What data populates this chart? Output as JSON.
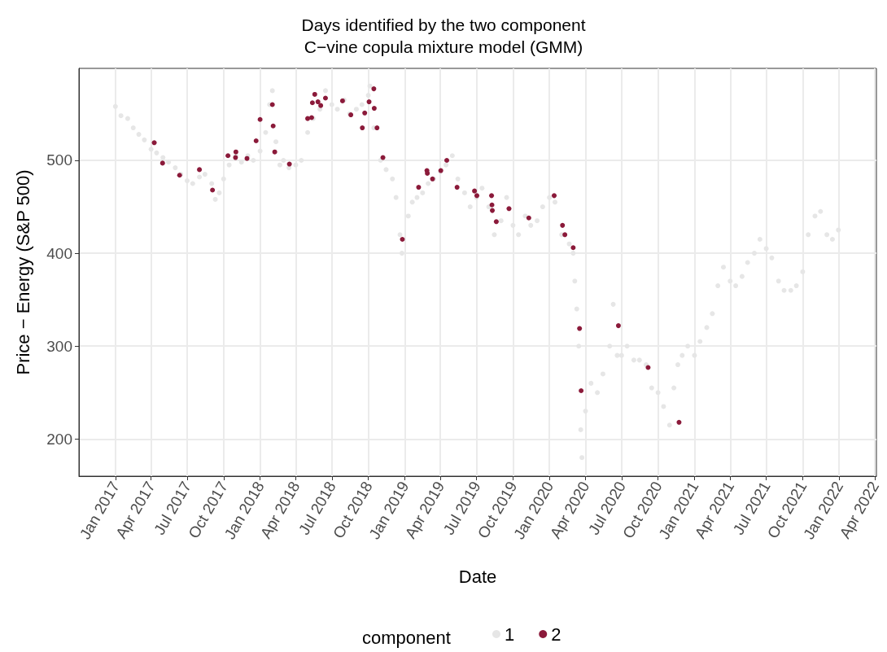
{
  "chart_data": {
    "type": "scatter",
    "title": "Days identified by the two component\nC−vine copula mixture model (GMM)",
    "xlabel": "Date",
    "ylabel": "Price − Energy (S&P 500)",
    "legend_title": "component",
    "legend": "bottom",
    "grid": true,
    "marker": "circle",
    "xlim": [
      "2016-10-01",
      "2022-04-05"
    ],
    "ylim": [
      160,
      599
    ],
    "yticks": [
      200,
      300,
      400,
      500
    ],
    "xticks": [
      {
        "value": "2017-01-01",
        "label": "Jan 2017"
      },
      {
        "value": "2017-04-01",
        "label": "Apr 2017"
      },
      {
        "value": "2017-07-01",
        "label": "Jul 2017"
      },
      {
        "value": "2017-10-01",
        "label": "Oct 2017"
      },
      {
        "value": "2018-01-01",
        "label": "Jan 2018"
      },
      {
        "value": "2018-04-01",
        "label": "Apr 2018"
      },
      {
        "value": "2018-07-01",
        "label": "Jul 2018"
      },
      {
        "value": "2018-10-01",
        "label": "Oct 2018"
      },
      {
        "value": "2019-01-01",
        "label": "Jan 2019"
      },
      {
        "value": "2019-04-01",
        "label": "Apr 2019"
      },
      {
        "value": "2019-07-01",
        "label": "Jul 2019"
      },
      {
        "value": "2019-10-01",
        "label": "Oct 2019"
      },
      {
        "value": "2020-01-01",
        "label": "Jan 2020"
      },
      {
        "value": "2020-04-01",
        "label": "Apr 2020"
      },
      {
        "value": "2020-07-01",
        "label": "Jul 2020"
      },
      {
        "value": "2020-10-01",
        "label": "Oct 2020"
      },
      {
        "value": "2021-01-01",
        "label": "Jan 2021"
      },
      {
        "value": "2021-04-01",
        "label": "Apr 2021"
      },
      {
        "value": "2021-07-01",
        "label": "Jul 2021"
      },
      {
        "value": "2021-10-01",
        "label": "Oct 2021"
      },
      {
        "value": "2022-01-01",
        "label": "Jan 2022"
      },
      {
        "value": "2022-04-01",
        "label": "Apr 2022"
      }
    ],
    "series": [
      {
        "name": "1",
        "color": "#e6e6e6",
        "x": [
          "2017-01-01",
          "2017-01-15",
          "2017-02-01",
          "2017-02-15",
          "2017-03-01",
          "2017-03-15",
          "2017-04-01",
          "2017-04-15",
          "2017-05-01",
          "2017-05-15",
          "2017-06-01",
          "2017-06-15",
          "2017-07-01",
          "2017-07-15",
          "2017-08-01",
          "2017-08-15",
          "2017-09-01",
          "2017-09-10",
          "2017-09-20",
          "2017-10-01",
          "2017-10-15",
          "2017-11-01",
          "2017-11-15",
          "2017-12-01",
          "2017-12-15",
          "2018-01-01",
          "2018-01-15",
          "2018-01-25",
          "2018-02-01",
          "2018-02-10",
          "2018-02-20",
          "2018-03-01",
          "2018-03-15",
          "2018-04-01",
          "2018-04-15",
          "2018-05-01",
          "2018-05-15",
          "2018-06-01",
          "2018-06-15",
          "2018-07-01",
          "2018-07-15",
          "2018-08-01",
          "2018-08-15",
          "2018-09-01",
          "2018-09-15",
          "2018-10-01",
          "2018-10-05",
          "2018-10-15",
          "2018-11-01",
          "2018-11-15",
          "2018-12-01",
          "2018-12-10",
          "2018-12-20",
          "2018-12-25",
          "2019-01-10",
          "2019-01-20",
          "2019-02-01",
          "2019-02-15",
          "2019-03-01",
          "2019-03-15",
          "2019-04-01",
          "2019-04-15",
          "2019-05-01",
          "2019-05-15",
          "2019-06-01",
          "2019-06-15",
          "2019-07-01",
          "2019-07-15",
          "2019-08-01",
          "2019-08-15",
          "2019-09-01",
          "2019-09-15",
          "2019-10-01",
          "2019-10-15",
          "2019-11-01",
          "2019-11-15",
          "2019-12-01",
          "2019-12-15",
          "2020-01-01",
          "2020-01-15",
          "2020-02-01",
          "2020-02-20",
          "2020-03-01",
          "2020-03-05",
          "2020-03-10",
          "2020-03-15",
          "2020-03-20",
          "2020-03-23",
          "2020-04-01",
          "2020-04-15",
          "2020-05-01",
          "2020-05-15",
          "2020-06-01",
          "2020-06-10",
          "2020-06-20",
          "2020-07-01",
          "2020-07-15",
          "2020-08-01",
          "2020-08-15",
          "2020-09-01",
          "2020-09-15",
          "2020-10-01",
          "2020-10-15",
          "2020-10-30",
          "2020-11-10",
          "2020-11-20",
          "2020-12-01",
          "2020-12-15",
          "2021-01-01",
          "2021-01-15",
          "2021-02-01",
          "2021-02-15",
          "2021-03-01",
          "2021-03-15",
          "2021-04-01",
          "2021-04-15",
          "2021-05-01",
          "2021-05-15",
          "2021-06-01",
          "2021-06-15",
          "2021-07-01",
          "2021-07-15",
          "2021-08-01",
          "2021-08-15",
          "2021-09-01",
          "2021-09-15",
          "2021-10-01",
          "2021-10-15",
          "2021-11-01",
          "2021-11-15",
          "2021-12-01",
          "2021-12-15",
          "2021-12-30"
        ],
        "values": [
          558,
          548,
          545,
          535,
          528,
          522,
          512,
          508,
          503,
          498,
          492,
          485,
          478,
          475,
          482,
          485,
          475,
          458,
          465,
          480,
          495,
          505,
          498,
          505,
          500,
          510,
          530,
          560,
          575,
          520,
          495,
          500,
          492,
          495,
          500,
          530,
          545,
          555,
          575,
          560,
          555,
          565,
          550,
          555,
          560,
          570,
          580,
          535,
          500,
          490,
          480,
          460,
          420,
          400,
          440,
          455,
          460,
          465,
          475,
          480,
          488,
          495,
          505,
          480,
          465,
          450,
          460,
          470,
          450,
          420,
          435,
          460,
          430,
          420,
          440,
          430,
          435,
          450,
          460,
          455,
          420,
          410,
          400,
          370,
          340,
          300,
          210,
          180,
          230,
          260,
          250,
          270,
          300,
          345,
          290,
          290,
          300,
          285,
          285,
          280,
          255,
          250,
          235,
          215,
          255,
          280,
          290,
          300,
          290,
          305,
          320,
          335,
          365,
          385,
          370,
          365,
          375,
          390,
          400,
          415,
          405,
          395,
          370,
          360,
          360,
          365,
          380,
          420,
          440,
          445,
          420,
          415,
          425
        ]
      },
      {
        "name": "2",
        "color": "#8b1a3a",
        "x": [
          "2017-04-09",
          "2017-04-30",
          "2017-06-12",
          "2017-08-01",
          "2017-09-03",
          "2017-10-12",
          "2017-10-31",
          "2017-11-01",
          "2017-11-29",
          "2017-12-22",
          "2018-01-01",
          "2018-02-01",
          "2018-02-03",
          "2018-02-07",
          "2018-03-16",
          "2018-05-01",
          "2018-05-11",
          "2018-05-13",
          "2018-05-19",
          "2018-05-27",
          "2018-06-03",
          "2018-06-15",
          "2018-07-28",
          "2018-08-18",
          "2018-09-16",
          "2018-09-22",
          "2018-10-03",
          "2018-10-15",
          "2018-10-16",
          "2018-10-23",
          "2018-11-07",
          "2018-12-26",
          "2019-02-05",
          "2019-02-26",
          "2019-02-27",
          "2019-03-12",
          "2019-04-02",
          "2019-04-17",
          "2019-05-13",
          "2019-06-26",
          "2019-07-02",
          "2019-08-08",
          "2019-08-09",
          "2019-08-10",
          "2019-08-20",
          "2019-09-21",
          "2019-11-10",
          "2020-01-13",
          "2020-02-03",
          "2020-02-09",
          "2020-03-01",
          "2020-03-17",
          "2020-03-21",
          "2020-06-23",
          "2020-09-06",
          "2020-11-23"
        ],
        "values": [
          519,
          497,
          484,
          490,
          468,
          505,
          503,
          509,
          502,
          521,
          544,
          560,
          537,
          509,
          496,
          545,
          546,
          562,
          571,
          563,
          559,
          567,
          564,
          549,
          535,
          551,
          563,
          577,
          556,
          535,
          503,
          415,
          471,
          489,
          486,
          480,
          489,
          500,
          471,
          467,
          462,
          462,
          452,
          446,
          434,
          448,
          438,
          462,
          430,
          420,
          406,
          319,
          252,
          322,
          277,
          218
        ]
      }
    ]
  }
}
